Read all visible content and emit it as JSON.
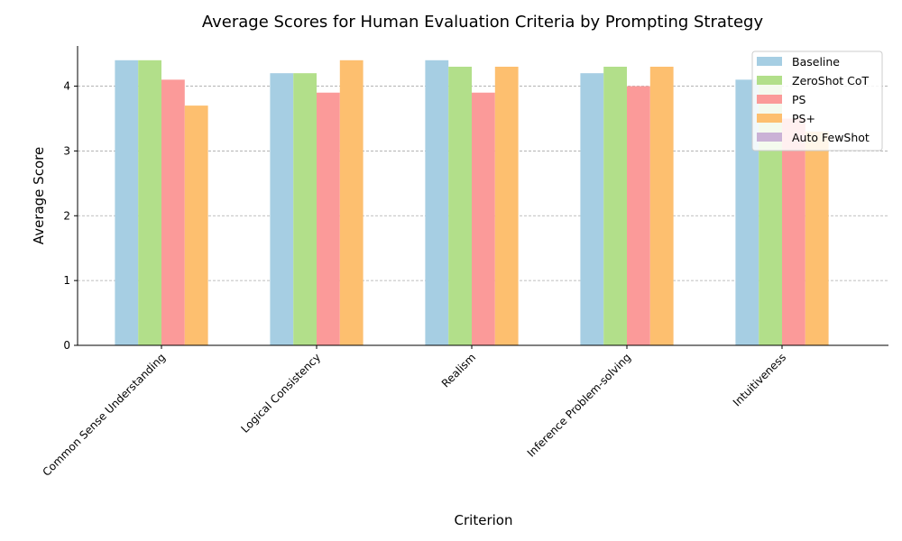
{
  "chart_data": {
    "type": "bar",
    "title": "Average Scores for Human Evaluation Criteria by Prompting Strategy",
    "xlabel": "Criterion",
    "ylabel": "Average Score",
    "categories": [
      "Common Sense Understanding",
      "Logical Consistency",
      "Realism",
      "Inference Problem-solving",
      "Intuitiveness"
    ],
    "yticks": [
      "0",
      "1",
      "2",
      "3",
      "4"
    ],
    "ylim": [
      0,
      4.62
    ],
    "grid": "y-dashed",
    "legend_position": "top-right",
    "series": [
      {
        "name": "Baseline",
        "color": "#a6cee3",
        "values": [
          4.4,
          4.2,
          4.4,
          4.2,
          4.1
        ]
      },
      {
        "name": "ZeroShot CoT",
        "color": "#b2df8a",
        "values": [
          4.4,
          4.2,
          4.3,
          4.3,
          4.1
        ]
      },
      {
        "name": "PS",
        "color": "#fb9a99",
        "values": [
          4.1,
          3.9,
          3.9,
          4.0,
          3.5
        ]
      },
      {
        "name": "PS+",
        "color": "#fdbf6f",
        "values": [
          3.7,
          4.4,
          4.3,
          4.3,
          3.3
        ]
      },
      {
        "name": "Auto FewShot",
        "color": "#cab2d6",
        "values": [
          0,
          0,
          0,
          0,
          0
        ]
      }
    ]
  }
}
